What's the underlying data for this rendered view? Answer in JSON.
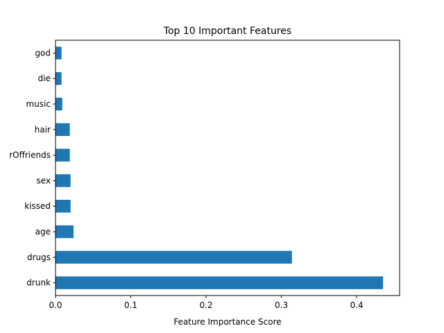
{
  "chart_data": {
    "type": "bar",
    "orientation": "horizontal",
    "title": "Top 10 Important Features",
    "xlabel": "Feature Importance Score",
    "ylabel": "",
    "categories": [
      "drunk",
      "drugs",
      "age",
      "kissed",
      "sex",
      "rOffriends",
      "hair",
      "music",
      "die",
      "god"
    ],
    "values": [
      0.435,
      0.314,
      0.024,
      0.02,
      0.02,
      0.019,
      0.019,
      0.009,
      0.008,
      0.008
    ],
    "xlim": [
      0,
      0.457
    ],
    "xticks": [
      0.0,
      0.1,
      0.2,
      0.3,
      0.4
    ],
    "xtick_labels": [
      "0.0",
      "0.1",
      "0.2",
      "0.3",
      "0.4"
    ],
    "grid": false,
    "legend": "none",
    "bar_color": "#1f77b4"
  }
}
